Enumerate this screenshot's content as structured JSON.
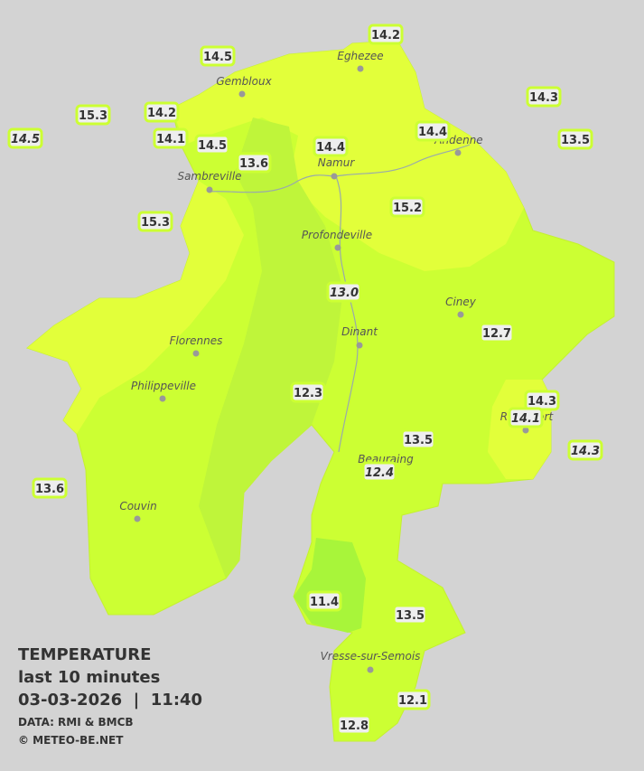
{
  "legend": {
    "title": "TEMPERATURE",
    "subtitle": "last 10 minutes",
    "datetime": "03-03-2026  |  11:40",
    "source": "DATA: RMI & BMCB",
    "credit": "© METEO-BE.NET"
  },
  "cities": [
    "Eghezee",
    "Gembloux",
    "Andenne",
    "Namur",
    "Sambreville",
    "Profondeville",
    "Ciney",
    "Dinant",
    "Florennes",
    "Philippeville",
    "Rochefort",
    "Beauraing",
    "Couvin",
    "Vresse-sur-Semois"
  ],
  "stations": [
    {
      "label": "14.2",
      "italic": false
    },
    {
      "label": "14.5",
      "italic": false
    },
    {
      "label": "14.3",
      "italic": false
    },
    {
      "label": "15.3",
      "italic": false
    },
    {
      "label": "14.2",
      "italic": false
    },
    {
      "label": "14.5",
      "italic": true
    },
    {
      "label": "14.1",
      "italic": false
    },
    {
      "label": "14.5",
      "italic": false
    },
    {
      "label": "13.5",
      "italic": false
    },
    {
      "label": "14.4",
      "italic": false
    },
    {
      "label": "14.4",
      "italic": false
    },
    {
      "label": "13.6",
      "italic": false
    },
    {
      "label": "15.2",
      "italic": false
    },
    {
      "label": "15.3",
      "italic": false
    },
    {
      "label": "13.0",
      "italic": true
    },
    {
      "label": "12.7",
      "italic": false
    },
    {
      "label": "12.3",
      "italic": false
    },
    {
      "label": "14.3",
      "italic": false
    },
    {
      "label": "14.1",
      "italic": true
    },
    {
      "label": "14.3",
      "italic": true
    },
    {
      "label": "13.5",
      "italic": false
    },
    {
      "label": "12.4",
      "italic": true
    },
    {
      "label": "13.6",
      "italic": false
    },
    {
      "label": "11.4",
      "italic": false
    },
    {
      "label": "13.5",
      "italic": false
    },
    {
      "label": "12.1",
      "italic": false
    },
    {
      "label": "12.8",
      "italic": false
    }
  ]
}
